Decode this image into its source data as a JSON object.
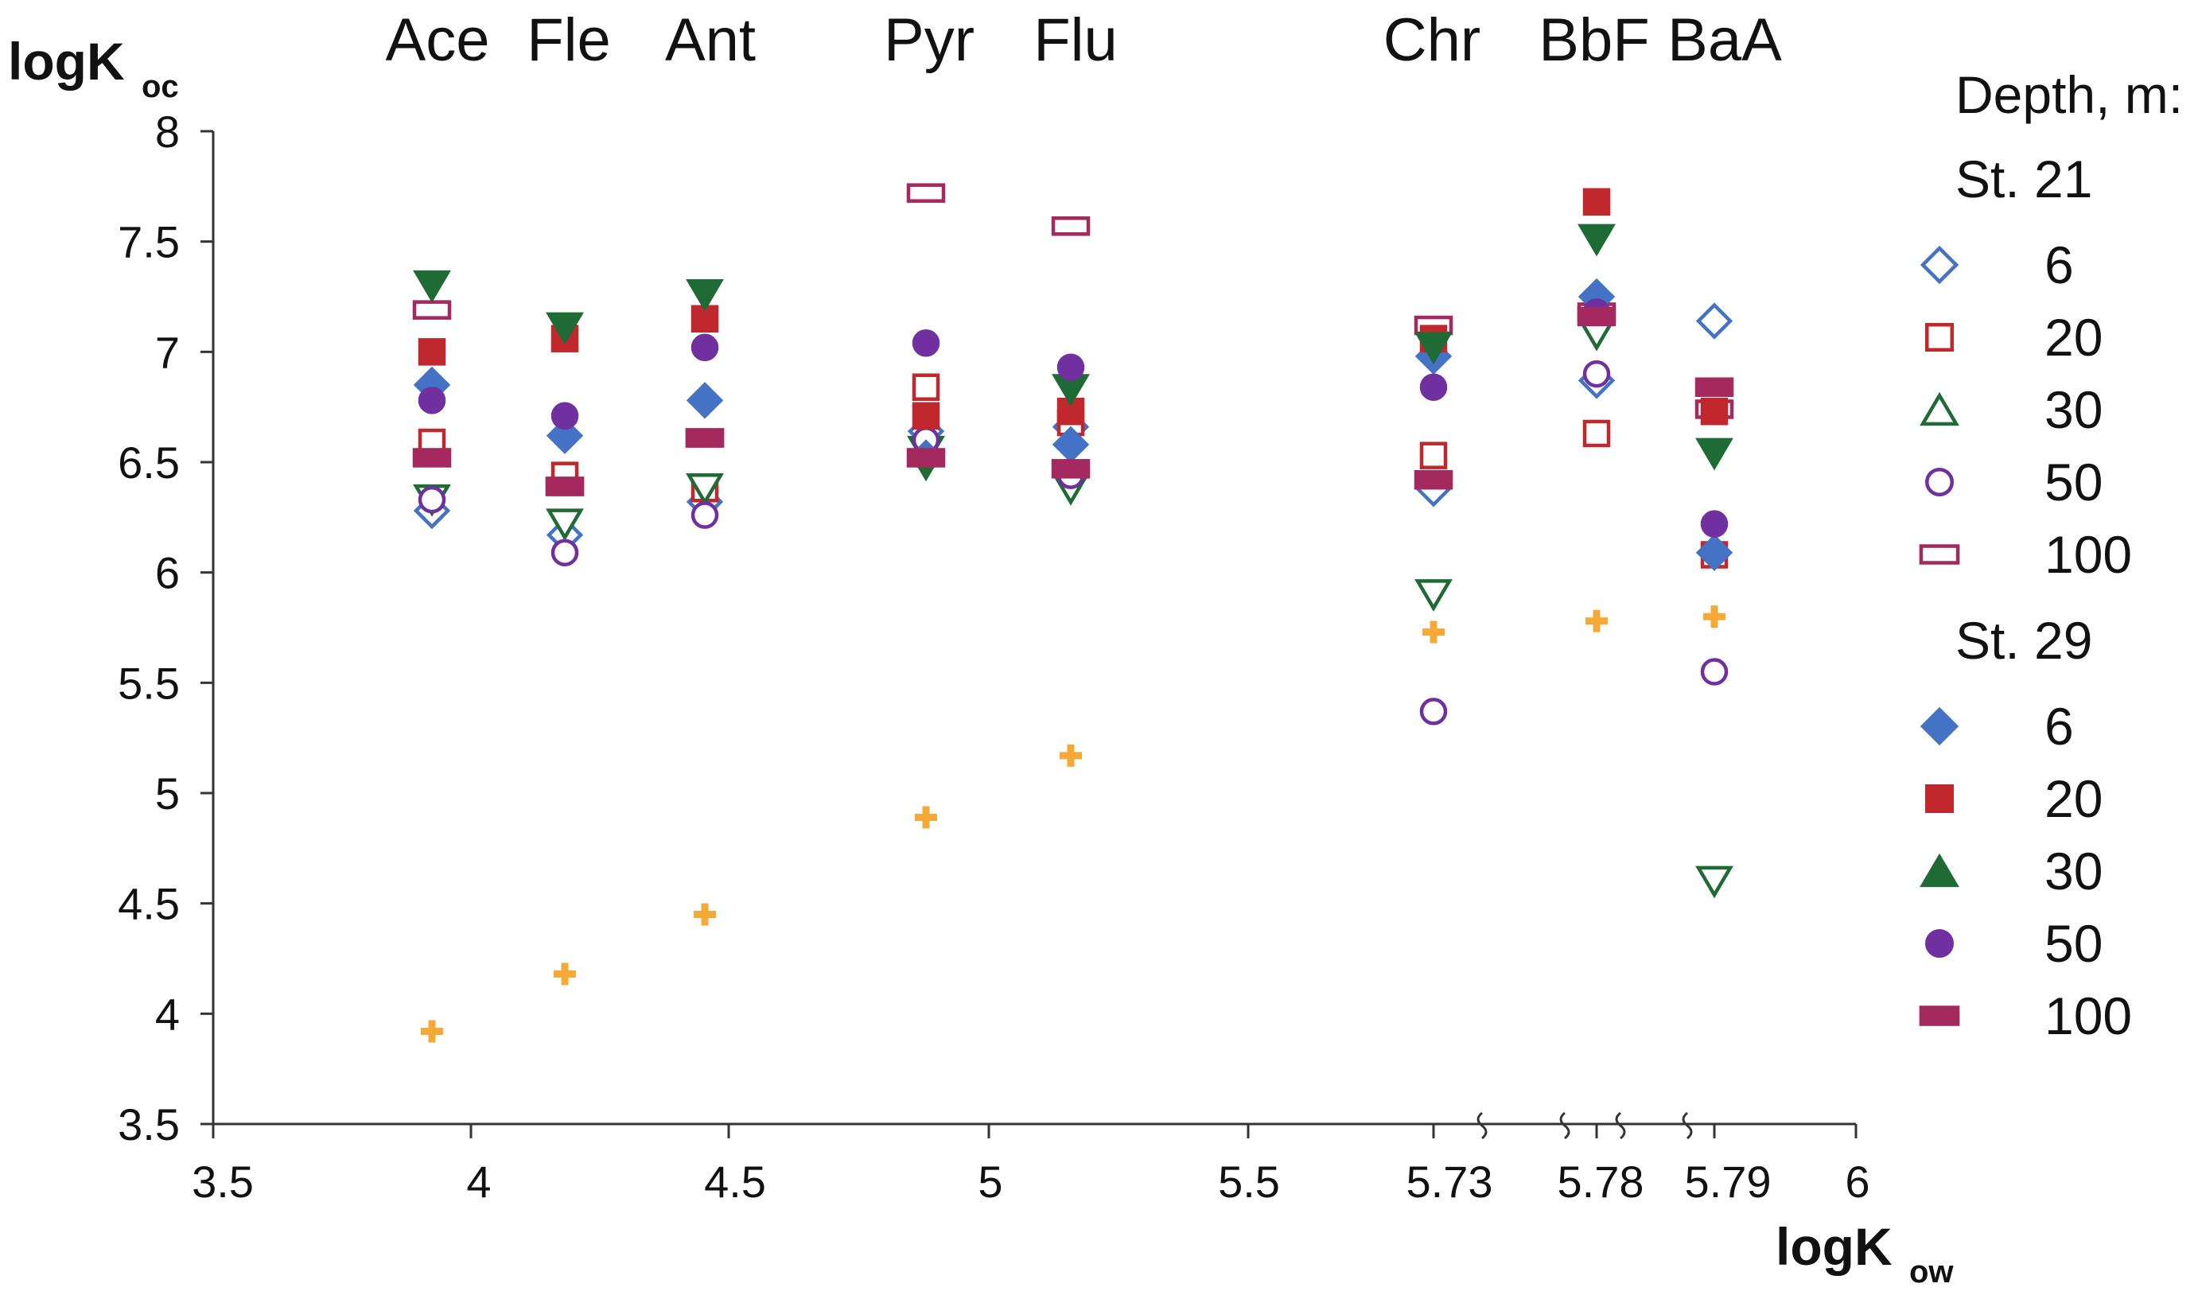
{
  "chart_data": {
    "type": "scatter",
    "title": "",
    "ylabel": "logK",
    "ylabel_sub": "oc",
    "xlabel": "logK",
    "xlabel_sub": "ow",
    "ylim": [
      3.5,
      8
    ],
    "yticks": [
      "3.5",
      "4",
      "4.5",
      "5",
      "5.5",
      "6",
      "6.5",
      "7",
      "7.5",
      "8"
    ],
    "xticks": [
      "3.5",
      "4",
      "4.5",
      "5",
      "5.5",
      "5.73",
      "5.78",
      "5.79",
      "6"
    ],
    "compounds": [
      "Ace",
      "Fle",
      "Ant",
      "Pyr",
      "Flu",
      "Chr",
      "BbF",
      "BaA"
    ],
    "compound_logKow": [
      "3.92",
      "4.18",
      "4.45",
      "4.88",
      "5.16",
      "5.73",
      "5.78",
      "5.79"
    ],
    "legend": {
      "title": "Depth, m:",
      "groups": [
        {
          "label": "St. 21",
          "entries": [
            "6",
            "20",
            "30",
            "50",
            "100"
          ]
        },
        {
          "label": "St. 29",
          "entries": [
            "6",
            "20",
            "30",
            "50",
            "100"
          ]
        }
      ]
    },
    "series": [
      {
        "name": "St. 21 - 6",
        "station": "St. 21",
        "depth": "6",
        "marker": "diamond",
        "filled": false,
        "color": "#4472c4",
        "values": [
          6.28,
          6.17,
          6.32,
          6.64,
          6.66,
          6.38,
          6.87,
          7.14
        ]
      },
      {
        "name": "St. 21 - 20",
        "station": "St. 21",
        "depth": "20",
        "marker": "square",
        "filled": false,
        "color": "#c0282d",
        "values": [
          6.59,
          6.44,
          6.38,
          6.84,
          6.68,
          6.53,
          6.63,
          6.08
        ]
      },
      {
        "name": "St. 21 - 30",
        "station": "St. 21",
        "depth": "30",
        "marker": "triangle-down",
        "filled": false,
        "color": "#1e6b35",
        "values": [
          6.33,
          6.22,
          6.38,
          6.55,
          6.38,
          5.9,
          7.08,
          4.6
        ]
      },
      {
        "name": "St. 21 - 50",
        "station": "St. 21",
        "depth": "50",
        "marker": "circle",
        "filled": false,
        "color": "#7030a0",
        "values": [
          6.33,
          6.09,
          6.26,
          6.6,
          6.44,
          5.37,
          6.9,
          5.55
        ]
      },
      {
        "name": "St. 21 - 100",
        "station": "St. 21",
        "depth": "100",
        "marker": "rect",
        "filled": false,
        "color": "#a3295e",
        "values": [
          7.19,
          6.39,
          6.61,
          7.72,
          7.57,
          7.12,
          7.18,
          6.74
        ]
      },
      {
        "name": "St. 29 - 6",
        "station": "St. 29",
        "depth": "6",
        "marker": "diamond",
        "filled": true,
        "color": "#4472c4",
        "values": [
          6.85,
          6.62,
          6.78,
          6.52,
          6.58,
          6.98,
          7.25,
          6.09
        ]
      },
      {
        "name": "St. 29 - 20",
        "station": "St. 29",
        "depth": "20",
        "marker": "square",
        "filled": true,
        "color": "#c0282d",
        "values": [
          7.0,
          7.06,
          7.15,
          6.71,
          6.73,
          7.06,
          7.68,
          6.73
        ]
      },
      {
        "name": "St. 29 - 30",
        "station": "St. 29",
        "depth": "30",
        "marker": "triangle-down",
        "filled": true,
        "color": "#1e6b35",
        "values": [
          7.3,
          7.11,
          7.26,
          6.49,
          6.83,
          7.02,
          7.51,
          6.54
        ]
      },
      {
        "name": "St. 29 - 50",
        "station": "St. 29",
        "depth": "50",
        "marker": "circle",
        "filled": true,
        "color": "#7030a0",
        "values": [
          6.78,
          6.71,
          7.02,
          7.04,
          6.93,
          6.84,
          7.18,
          6.22
        ]
      },
      {
        "name": "St. 29 - 100",
        "station": "St. 29",
        "depth": "100",
        "marker": "rect",
        "filled": true,
        "color": "#a3295e",
        "values": [
          6.52,
          6.39,
          6.61,
          6.52,
          6.47,
          6.42,
          7.16,
          6.84
        ]
      },
      {
        "name": "reference",
        "marker": "plus",
        "filled": true,
        "color": "#f7a937",
        "in_legend": false,
        "values": [
          3.92,
          4.18,
          4.45,
          4.89,
          5.17,
          5.73,
          5.78,
          5.8
        ]
      }
    ]
  }
}
